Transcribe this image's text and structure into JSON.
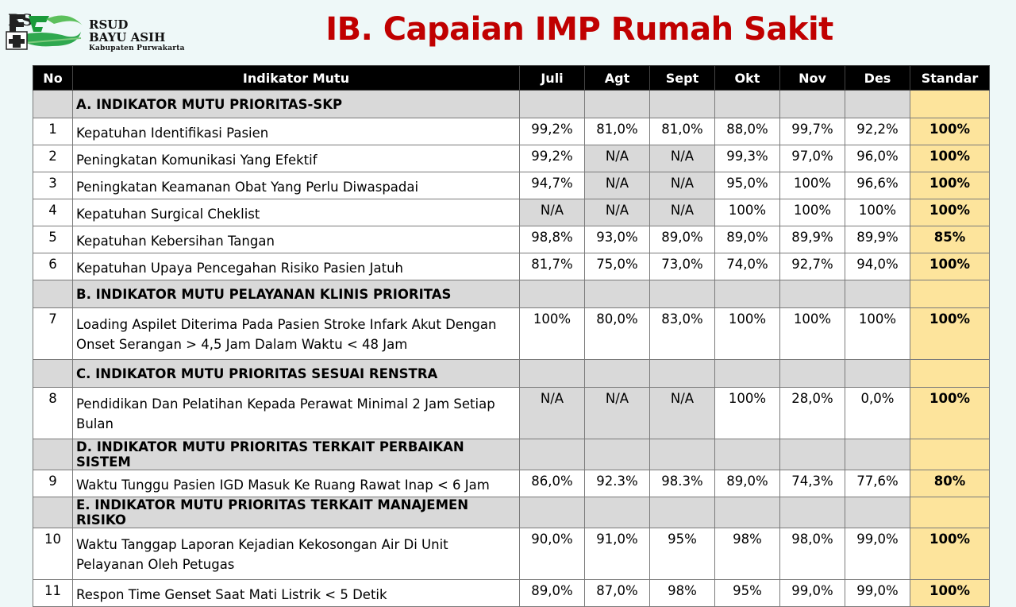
{
  "logo": {
    "line1": "RSUD",
    "line2": "BAYU ASIH",
    "line3": "Kabupaten Purwakarta"
  },
  "title": "IB. Capaian IMP Rumah Sakit",
  "colors": {
    "title": "#c00000",
    "header_bg": "#000000",
    "section_bg": "#d9d9d9",
    "standard_bg": "#fde49c",
    "na_bg": "#d9d9d9"
  },
  "headers": [
    "No",
    "Indikator Mutu",
    "Juli",
    "Agt",
    "Sept",
    "Okt",
    "Nov",
    "Des",
    "Standar"
  ],
  "sections": [
    {
      "title": "A. INDIKATOR  MUTU PRIORITAS-SKP",
      "rows": [
        {
          "no": "1",
          "indicator": "Kepatuhan Identifikasi Pasien",
          "values": [
            "99,2%",
            "81,0%",
            "81,0%",
            "88,0%",
            "99,7%",
            "92,2%"
          ],
          "standard": "100%"
        },
        {
          "no": "2",
          "indicator": "Peningkatan Komunikasi Yang Efektif",
          "values": [
            "99,2%",
            "N/A",
            "N/A",
            "99,3%",
            "97,0%",
            "96,0%"
          ],
          "standard": "100%"
        },
        {
          "no": "3",
          "indicator": "Peningkatan Keamanan Obat Yang Perlu Diwaspadai",
          "values": [
            "94,7%",
            "N/A",
            "N/A",
            "95,0%",
            "100%",
            "96,6%"
          ],
          "standard": "100%"
        },
        {
          "no": "4",
          "indicator": "Kepatuhan Surgical Cheklist",
          "values": [
            "N/A",
            "N/A",
            "N/A",
            "100%",
            "100%",
            "100%"
          ],
          "standard": "100%"
        },
        {
          "no": "5",
          "indicator": "Kepatuhan Kebersihan Tangan",
          "values": [
            "98,8%",
            "93,0%",
            "89,0%",
            "89,0%",
            "89,9%",
            "89,9%"
          ],
          "standard": "85%"
        },
        {
          "no": "6",
          "indicator": "Kepatuhan Upaya Pencegahan Risiko Pasien Jatuh",
          "values": [
            "81,7%",
            "75,0%",
            "73,0%",
            "74,0%",
            "92,7%",
            "94,0%"
          ],
          "standard": "100%"
        }
      ]
    },
    {
      "title": "B. INDIKATOR MUTU PELAYANAN KLINIS PRIORITAS",
      "rows": [
        {
          "no": "7",
          "indicator": "Loading Aspilet Diterima Pada Pasien Stroke Infark Akut Dengan Onset Serangan > 4,5 Jam Dalam Waktu < 48 Jam",
          "values": [
            "100%",
            "80,0%",
            "83,0%",
            "100%",
            "100%",
            "100%"
          ],
          "standard": "100%",
          "tall": true
        }
      ]
    },
    {
      "title": "C. INDIKATOR MUTU PRIORITAS SESUAI RENSTRA",
      "rows": [
        {
          "no": "8",
          "indicator": "Pendidikan Dan Pelatihan Kepada Perawat Minimal 2 Jam Setiap Bulan",
          "values": [
            "N/A",
            "N/A",
            "N/A",
            "100%",
            "28,0%",
            "0,0%"
          ],
          "standard": "100%",
          "tall": true
        }
      ]
    },
    {
      "title": "D. INDIKATOR MUTU PRIORITAS TERKAIT PERBAIKAN SISTEM",
      "rows": [
        {
          "no": "9",
          "indicator": "Waktu Tunggu Pasien IGD Masuk Ke Ruang Rawat Inap < 6 Jam",
          "values": [
            "86,0%",
            "92.3%",
            "98.3%",
            "89,0%",
            "74,3%",
            "77,6%"
          ],
          "standard": "80%"
        }
      ]
    },
    {
      "title": "E. INDIKATOR MUTU  PRIORITAS TERKAIT MANAJEMEN RISIKO",
      "rows": [
        {
          "no": "10",
          "indicator": "Waktu Tanggap Laporan Kejadian Kekosongan Air Di Unit Pelayanan Oleh Petugas",
          "values": [
            "90,0%",
            "91,0%",
            "95%",
            "98%",
            "98,0%",
            "99,0%"
          ],
          "standard": "100%",
          "tall": true
        },
        {
          "no": "11",
          "indicator": "Respon Time Genset  Saat Mati Listrik < 5 Detik",
          "values": [
            "89,0%",
            "87,0%",
            "98%",
            "95%",
            "99,0%",
            "99,0%"
          ],
          "standard": "100%"
        }
      ]
    }
  ]
}
